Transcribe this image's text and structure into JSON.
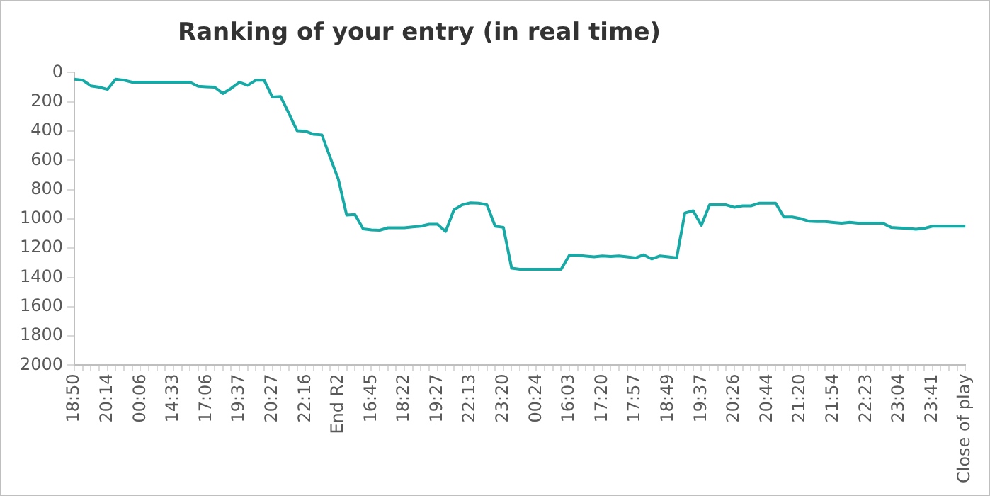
{
  "chart_data": {
    "type": "line",
    "title": "Ranking of your entry (in real time)",
    "categories": [
      "18:50",
      null,
      null,
      null,
      "20:14",
      null,
      null,
      null,
      "00:06",
      null,
      null,
      null,
      "14:33",
      null,
      null,
      null,
      "17:06",
      null,
      null,
      null,
      "19:37",
      null,
      null,
      null,
      "20:27",
      null,
      null,
      null,
      "22:16",
      null,
      null,
      null,
      "End R2",
      null,
      null,
      null,
      "16:45",
      null,
      null,
      null,
      "18:22",
      null,
      null,
      null,
      "19:27",
      null,
      null,
      null,
      "22:13",
      null,
      null,
      null,
      "23:20",
      null,
      null,
      null,
      "00:24",
      null,
      null,
      null,
      "16:03",
      null,
      null,
      null,
      "17:20",
      null,
      null,
      null,
      "17:57",
      null,
      null,
      null,
      "18:49",
      null,
      null,
      null,
      "19:37",
      null,
      null,
      null,
      "20:26",
      null,
      null,
      null,
      "20:44",
      null,
      null,
      null,
      "21:20",
      null,
      null,
      null,
      "21:54",
      null,
      null,
      null,
      "22:23",
      null,
      null,
      null,
      "23:04",
      null,
      null,
      null,
      "23:41",
      null,
      null,
      null,
      "Close of play"
    ],
    "series": [
      {
        "color": "#17a9a6",
        "values": [
          45,
          52,
          91,
          100,
          115,
          45,
          52,
          66,
          66,
          66,
          66,
          66,
          66,
          66,
          66,
          94,
          97,
          100,
          143,
          108,
          66,
          87,
          52,
          52,
          168,
          164,
          280,
          398,
          401,
          422,
          426,
          580,
          730,
          974,
          970,
          1068,
          1075,
          1078,
          1061,
          1061,
          1061,
          1055,
          1050,
          1037,
          1037,
          1086,
          939,
          904,
          890,
          893,
          904,
          1050,
          1058,
          1337,
          1344,
          1344,
          1344,
          1344,
          1344,
          1344,
          1249,
          1249,
          1255,
          1260,
          1253,
          1257,
          1253,
          1260,
          1267,
          1246,
          1274,
          1253,
          1260,
          1267,
          960,
          945,
          1044,
          904,
          904,
          904,
          921,
          911,
          911,
          893,
          893,
          893,
          987,
          987,
          998,
          1016,
          1019,
          1019,
          1025,
          1030,
          1023,
          1030,
          1030,
          1030,
          1030,
          1058,
          1062,
          1065,
          1071,
          1065,
          1050,
          1050,
          1050,
          1050,
          1050
        ]
      }
    ],
    "ylim": [
      2000,
      0
    ],
    "yticks": [
      0,
      200,
      400,
      600,
      800,
      1000,
      1200,
      1400,
      1600,
      1800,
      2000
    ],
    "grid": false,
    "legend": false,
    "marker": "none",
    "line_style": "solid"
  }
}
